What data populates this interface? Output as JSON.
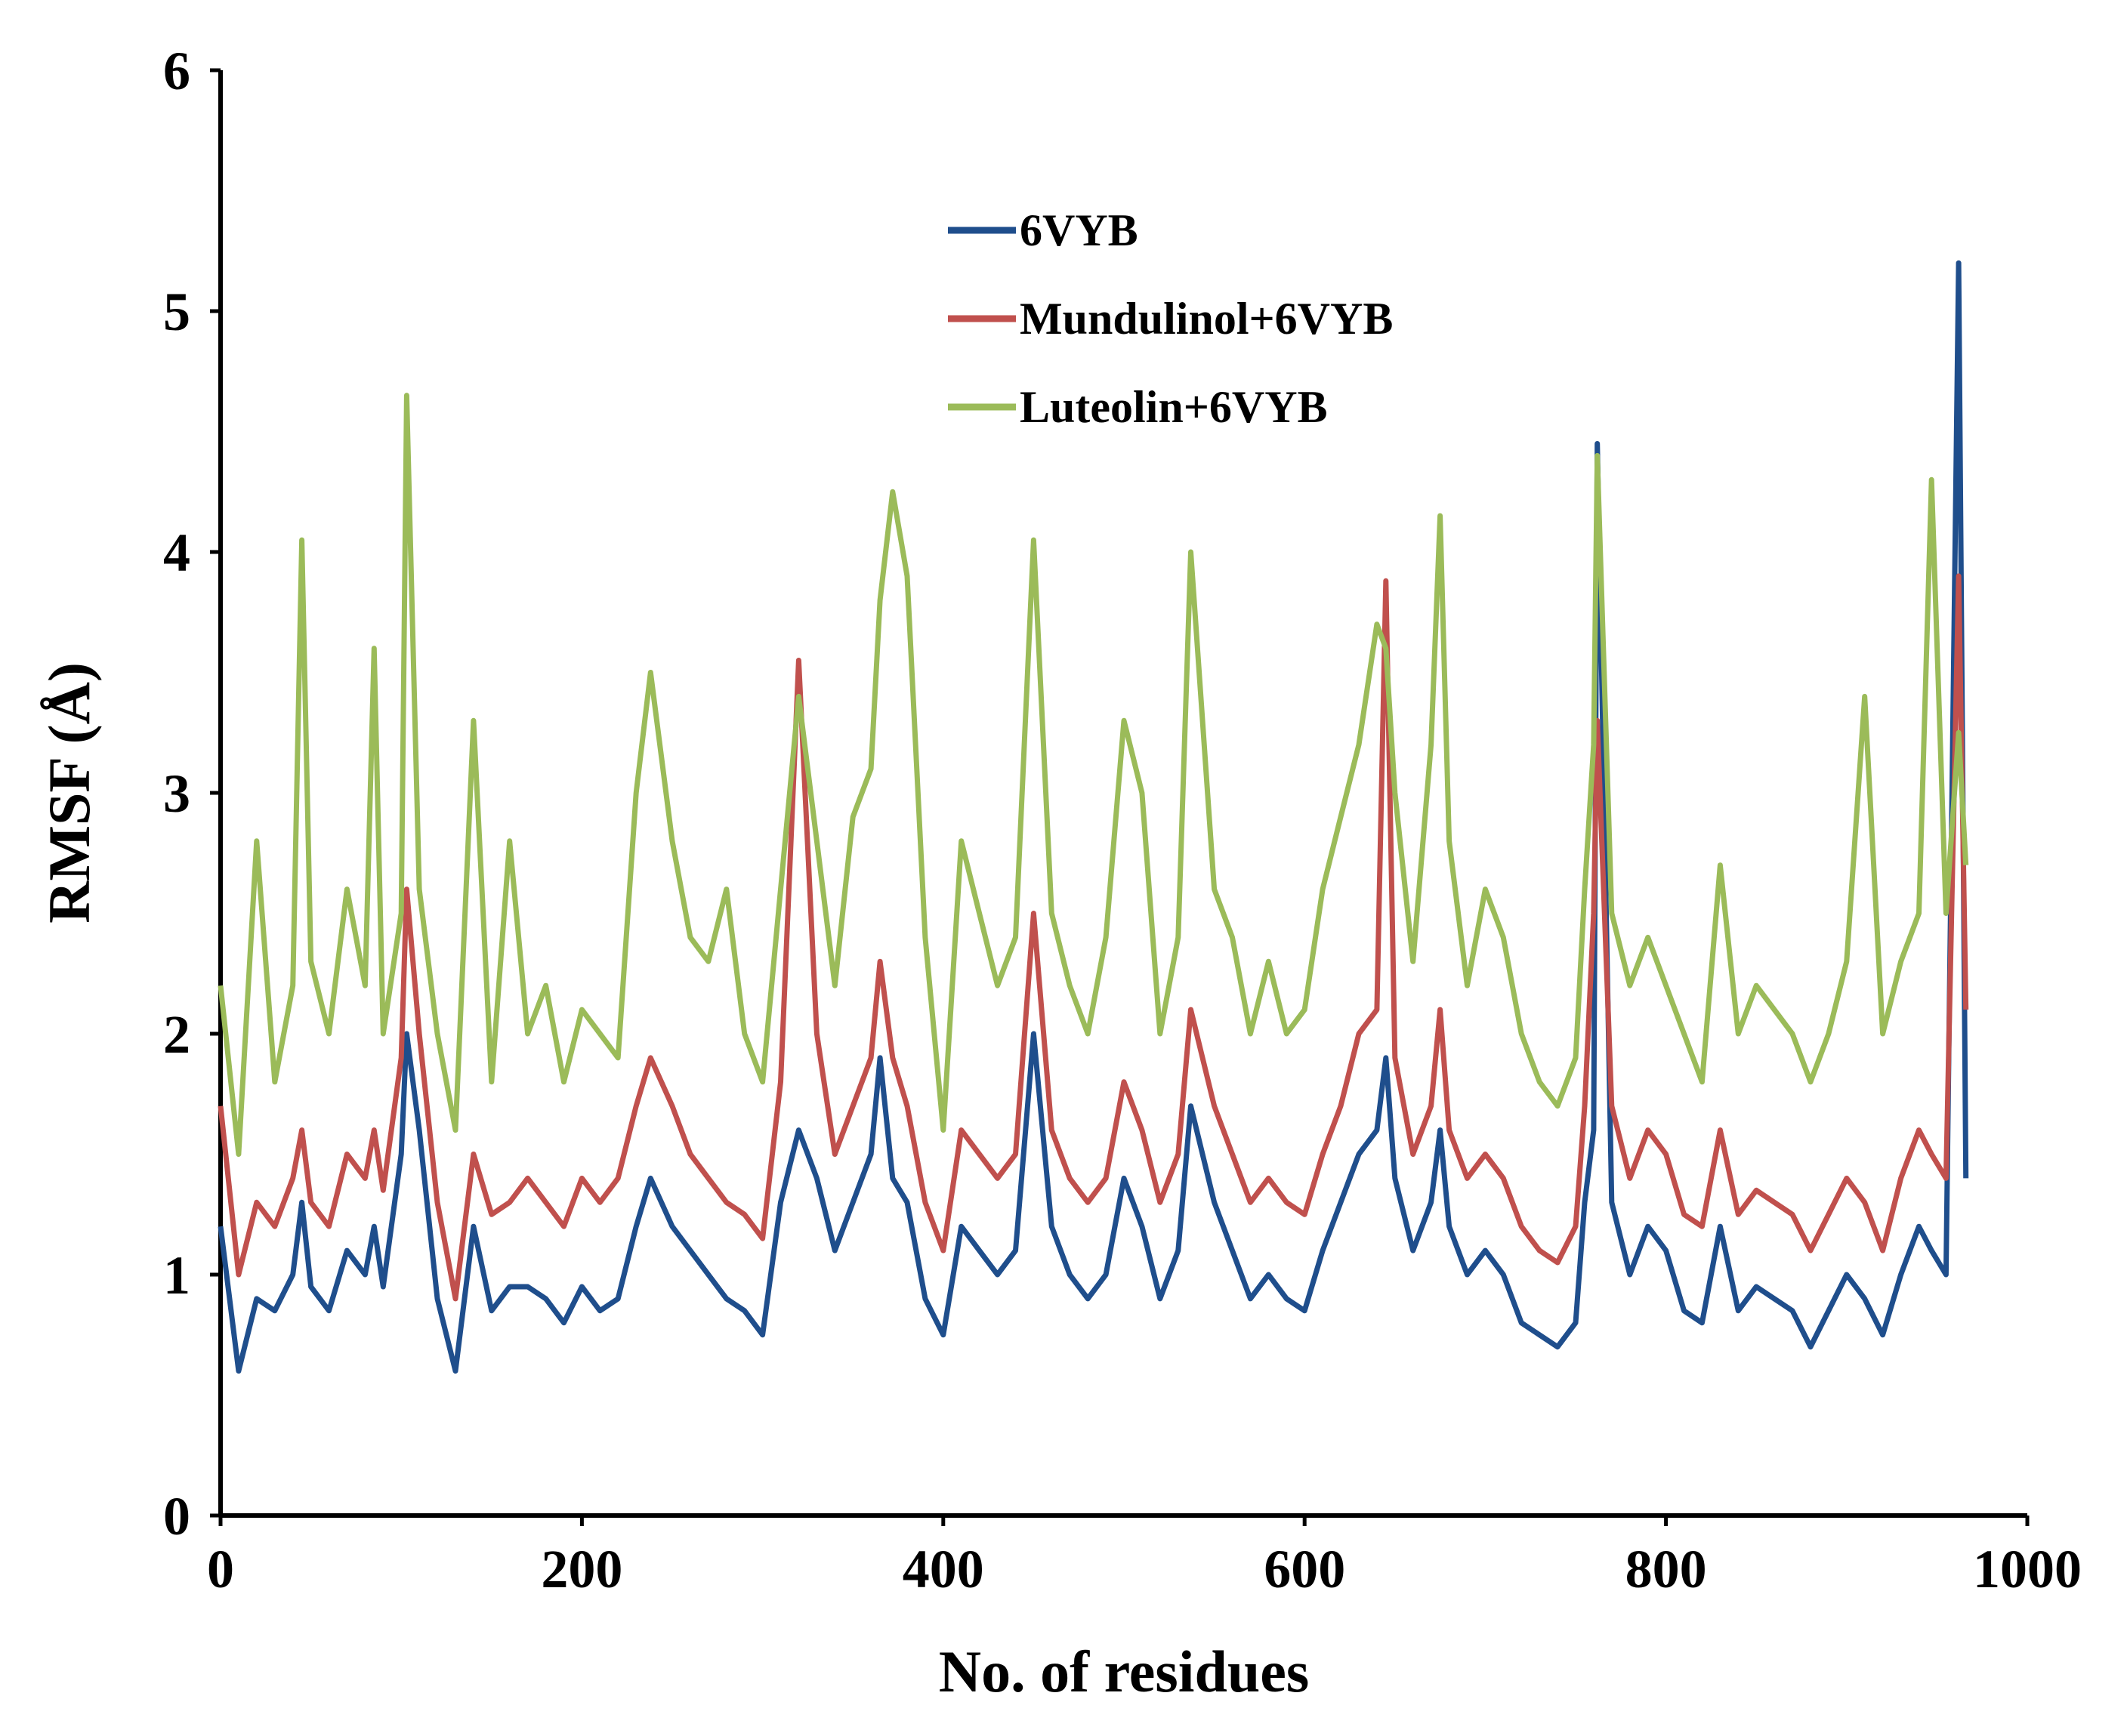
{
  "chart_data": {
    "type": "line",
    "title": "",
    "xlabel": "No. of residues",
    "ylabel": "RMSF (Å)",
    "xlim": [
      0,
      1000
    ],
    "ylim": [
      0,
      6
    ],
    "xticks": [
      0,
      200,
      400,
      600,
      800,
      1000
    ],
    "yticks": [
      0,
      1,
      2,
      3,
      4,
      5,
      6
    ],
    "xtick_labels": [
      "0",
      "200",
      "400",
      "600",
      "800",
      "1000"
    ],
    "ytick_labels": [
      "0",
      "1",
      "2",
      "3",
      "4",
      "5",
      "6"
    ],
    "grid": false,
    "legend_position": "top-center",
    "x": [
      0,
      10,
      20,
      30,
      40,
      45,
      50,
      60,
      70,
      80,
      85,
      90,
      100,
      103,
      110,
      120,
      130,
      140,
      150,
      160,
      170,
      180,
      190,
      200,
      210,
      220,
      230,
      238,
      250,
      260,
      270,
      280,
      290,
      300,
      310,
      320,
      330,
      340,
      350,
      360,
      365,
      372,
      380,
      390,
      400,
      410,
      420,
      430,
      440,
      450,
      460,
      470,
      480,
      490,
      500,
      510,
      520,
      530,
      537,
      550,
      560,
      570,
      580,
      590,
      600,
      610,
      620,
      630,
      640,
      645,
      650,
      660,
      670,
      675,
      680,
      690,
      700,
      710,
      720,
      730,
      740,
      750,
      755,
      760,
      762,
      770,
      780,
      790,
      800,
      810,
      820,
      830,
      840,
      850,
      860,
      870,
      880,
      890,
      900,
      910,
      920,
      930,
      940,
      947,
      955,
      962,
      966
    ],
    "series": [
      {
        "name": "6VYB",
        "color": "#1f4e8c",
        "values": [
          1.2,
          0.6,
          0.9,
          0.85,
          1.0,
          1.3,
          0.95,
          0.85,
          1.1,
          1.0,
          1.2,
          0.95,
          1.5,
          2.0,
          1.6,
          0.9,
          0.6,
          1.2,
          0.85,
          0.95,
          0.95,
          0.9,
          0.8,
          0.95,
          0.85,
          0.9,
          1.2,
          1.4,
          1.2,
          1.1,
          1.0,
          0.9,
          0.85,
          0.75,
          1.3,
          1.6,
          1.4,
          1.1,
          1.3,
          1.5,
          1.9,
          1.4,
          1.3,
          0.9,
          0.75,
          1.2,
          1.1,
          1.0,
          1.1,
          2.0,
          1.2,
          1.0,
          0.9,
          1.0,
          1.4,
          1.2,
          0.9,
          1.1,
          1.7,
          1.3,
          1.1,
          0.9,
          1.0,
          0.9,
          0.85,
          1.1,
          1.3,
          1.5,
          1.6,
          1.9,
          1.4,
          1.1,
          1.3,
          1.6,
          1.2,
          1.0,
          1.1,
          1.0,
          0.8,
          0.75,
          0.7,
          0.8,
          1.3,
          1.6,
          4.45,
          1.3,
          1.0,
          1.2,
          1.1,
          0.85,
          0.8,
          1.2,
          0.85,
          0.95,
          0.9,
          0.85,
          0.7,
          0.85,
          1.0,
          0.9,
          0.75,
          1.0,
          1.2,
          1.1,
          1.0,
          5.2,
          1.4
        ]
      },
      {
        "name": "Mundulinol+6VYB",
        "color": "#c0504d",
        "values": [
          1.7,
          1.0,
          1.3,
          1.2,
          1.4,
          1.6,
          1.3,
          1.2,
          1.5,
          1.4,
          1.6,
          1.35,
          1.9,
          2.6,
          2.0,
          1.3,
          0.9,
          1.5,
          1.25,
          1.3,
          1.4,
          1.3,
          1.2,
          1.4,
          1.3,
          1.4,
          1.7,
          1.9,
          1.7,
          1.5,
          1.4,
          1.3,
          1.25,
          1.15,
          1.8,
          3.55,
          2.0,
          1.5,
          1.7,
          1.9,
          2.3,
          1.9,
          1.7,
          1.3,
          1.1,
          1.6,
          1.5,
          1.4,
          1.5,
          2.5,
          1.6,
          1.4,
          1.3,
          1.4,
          1.8,
          1.6,
          1.3,
          1.5,
          2.1,
          1.7,
          1.5,
          1.3,
          1.4,
          1.3,
          1.25,
          1.5,
          1.7,
          2.0,
          2.1,
          3.88,
          1.9,
          1.5,
          1.7,
          2.1,
          1.6,
          1.4,
          1.5,
          1.4,
          1.2,
          1.1,
          1.05,
          1.2,
          1.7,
          2.5,
          3.3,
          1.7,
          1.4,
          1.6,
          1.5,
          1.25,
          1.2,
          1.6,
          1.25,
          1.35,
          1.3,
          1.25,
          1.1,
          1.25,
          1.4,
          1.3,
          1.1,
          1.4,
          1.6,
          1.5,
          1.4,
          3.9,
          2.1
        ]
      },
      {
        "name": "Luteolin+6VYB",
        "color": "#9bbb59",
        "values": [
          2.2,
          1.5,
          2.8,
          1.8,
          2.2,
          4.05,
          2.3,
          2.0,
          2.6,
          2.2,
          3.6,
          2.0,
          2.5,
          4.65,
          2.6,
          2.0,
          1.6,
          3.3,
          1.8,
          2.8,
          2.0,
          2.2,
          1.8,
          2.1,
          2.0,
          1.9,
          3.0,
          3.5,
          2.8,
          2.4,
          2.3,
          2.6,
          2.0,
          1.8,
          2.6,
          3.4,
          2.8,
          2.2,
          2.9,
          3.1,
          3.8,
          4.25,
          3.9,
          2.4,
          1.6,
          2.8,
          2.5,
          2.2,
          2.4,
          4.05,
          2.5,
          2.2,
          2.0,
          2.4,
          3.3,
          3.0,
          2.0,
          2.4,
          4.0,
          2.6,
          2.4,
          2.0,
          2.3,
          2.0,
          2.1,
          2.6,
          2.9,
          3.2,
          3.7,
          3.6,
          3.0,
          2.3,
          3.2,
          4.15,
          2.8,
          2.2,
          2.6,
          2.4,
          2.0,
          1.8,
          1.7,
          1.9,
          2.6,
          3.2,
          4.4,
          2.5,
          2.2,
          2.4,
          2.2,
          2.0,
          1.8,
          2.7,
          2.0,
          2.2,
          2.1,
          2.0,
          1.8,
          2.0,
          2.3,
          3.4,
          2.0,
          2.3,
          2.5,
          4.3,
          2.5,
          3.25,
          2.7
        ]
      }
    ]
  }
}
